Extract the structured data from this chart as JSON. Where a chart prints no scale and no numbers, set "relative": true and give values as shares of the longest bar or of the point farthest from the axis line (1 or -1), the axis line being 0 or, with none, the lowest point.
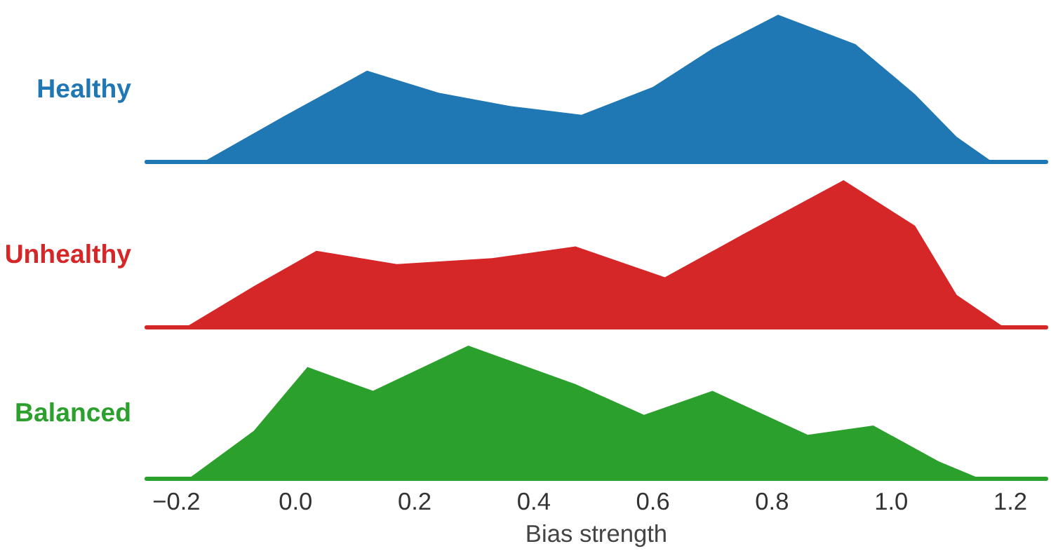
{
  "chart_data": [
    {
      "type": "area",
      "relative": true,
      "tick_labels": false,
      "xlim": [
        -0.25,
        1.26
      ],
      "series": [
        {
          "name": "Healthy",
          "color": "#1f77b4",
          "x": [
            -0.155,
            -0.02,
            0.12,
            0.24,
            0.36,
            0.48,
            0.6,
            0.7,
            0.81,
            0.94,
            1.04,
            1.11,
            1.17
          ],
          "values": [
            0,
            0.31,
            0.62,
            0.47,
            0.38,
            0.32,
            0.51,
            0.77,
            1.0,
            0.8,
            0.46,
            0.17,
            0
          ]
        }
      ]
    },
    {
      "type": "area",
      "relative": true,
      "tick_labels": false,
      "xlim": [
        -0.25,
        1.26
      ],
      "series": [
        {
          "name": "Unhealthy",
          "color": "#d62728",
          "x": [
            -0.185,
            -0.07,
            0.035,
            0.17,
            0.33,
            0.47,
            0.62,
            0.75,
            0.92,
            1.04,
            1.11,
            1.19
          ],
          "values": [
            0,
            0.28,
            0.52,
            0.43,
            0.47,
            0.55,
            0.34,
            0.63,
            1,
            0.69,
            0.22,
            0
          ]
        }
      ]
    },
    {
      "type": "area",
      "relative": true,
      "tick_labels": "x",
      "xlabel": "Bias strength",
      "xlim": [
        -0.25,
        1.26
      ],
      "xticks": [
        {
          "value": -0.2,
          "label": "−0.2"
        },
        {
          "value": 0,
          "label": "0.0"
        },
        {
          "value": 0.2,
          "label": "0.2"
        },
        {
          "value": 0.4,
          "label": "0.4"
        },
        {
          "value": 0.6,
          "label": "0.6"
        },
        {
          "value": 0.8,
          "label": "0.8"
        },
        {
          "value": 1.0,
          "label": "1.0"
        },
        {
          "value": 1.2,
          "label": "1.2"
        }
      ],
      "series": [
        {
          "name": "Balanced",
          "color": "#2ca02c",
          "x": [
            -0.18,
            -0.07,
            0.02,
            0.13,
            0.29,
            0.47,
            0.585,
            0.7,
            0.86,
            0.97,
            1.08,
            1.15
          ],
          "values": [
            0,
            0.36,
            0.84,
            0.66,
            1,
            0.71,
            0.48,
            0.66,
            0.33,
            0.4,
            0.13,
            0
          ]
        }
      ]
    }
  ]
}
